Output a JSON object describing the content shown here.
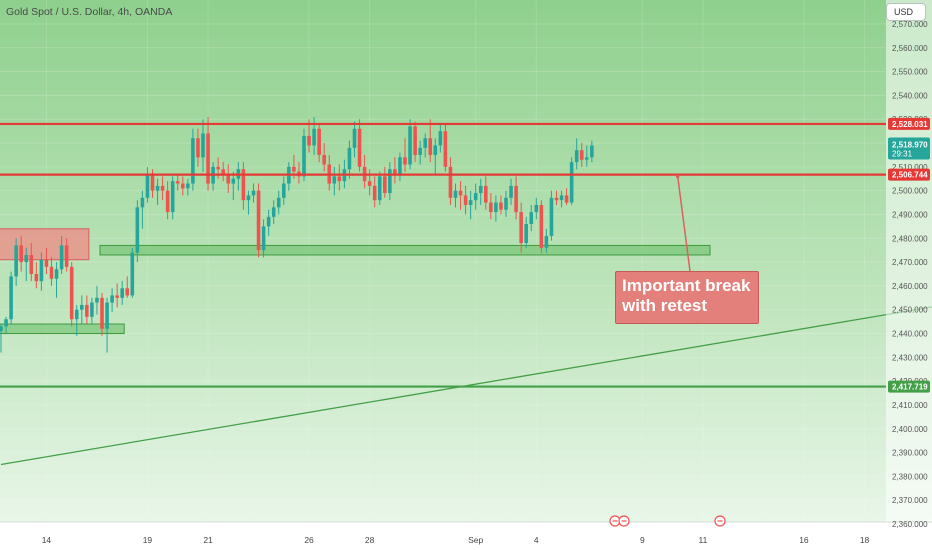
{
  "header": {
    "symbol_title": "Gold Spot / U.S. Dollar, 4h, OANDA",
    "currency": "USD"
  },
  "annotation": {
    "line1": "Important break",
    "line2": "with retest"
  },
  "colors": {
    "bg_top": "#8fd08d",
    "bg_bottom": "#eef8ee",
    "bull": "#26a69a",
    "bear": "#ef5350",
    "resistance_line": "#e53935",
    "support_line": "#43a047",
    "zone_green": "#6cc26c",
    "zone_red": "#f08a86",
    "annotation_bg": "#e3807c"
  },
  "chart_data": {
    "type": "candlestick",
    "timeframe": "4h",
    "y_axis": {
      "min": 2360,
      "max": 2570,
      "ticks": [
        "2,360.000",
        "2,370.000",
        "2,380.000",
        "2,390.000",
        "2,400.000",
        "2,410.000",
        "2,420.000",
        "2,430.000",
        "2,440.000",
        "2,450.000",
        "2,460.000",
        "2,470.000",
        "2,480.000",
        "2,490.000",
        "2,500.000",
        "2,510.000",
        "2,520.000",
        "2,530.000",
        "2,540.000",
        "2,550.000",
        "2,560.000",
        "2,570.000"
      ]
    },
    "x_axis": {
      "labels": [
        {
          "text": "14",
          "index": 9
        },
        {
          "text": "19",
          "index": 29
        },
        {
          "text": "21",
          "index": 41
        },
        {
          "text": "26",
          "index": 61
        },
        {
          "text": "28",
          "index": 73
        },
        {
          "text": "Sep",
          "index": 94
        },
        {
          "text": "4",
          "index": 106
        },
        {
          "text": "9",
          "index": 127
        },
        {
          "text": "11",
          "index": 139
        },
        {
          "text": "16",
          "index": 159
        },
        {
          "text": "18",
          "index": 171
        }
      ]
    },
    "candles_ohlc": [
      [
        2441,
        2444,
        2432,
        2443
      ],
      [
        2443,
        2447,
        2440,
        2446
      ],
      [
        2446,
        2466,
        2444,
        2464
      ],
      [
        2464,
        2480,
        2460,
        2477
      ],
      [
        2477,
        2481,
        2466,
        2470
      ],
      [
        2470,
        2476,
        2462,
        2473
      ],
      [
        2473,
        2478,
        2462,
        2465
      ],
      [
        2465,
        2470,
        2459,
        2462
      ],
      [
        2462,
        2474,
        2458,
        2471
      ],
      [
        2471,
        2476,
        2465,
        2468
      ],
      [
        2468,
        2472,
        2460,
        2463
      ],
      [
        2463,
        2470,
        2455,
        2467
      ],
      [
        2467,
        2481,
        2465,
        2477
      ],
      [
        2477,
        2480,
        2466,
        2468
      ],
      [
        2468,
        2470,
        2443,
        2446
      ],
      [
        2446,
        2452,
        2439,
        2450
      ],
      [
        2450,
        2456,
        2444,
        2452
      ],
      [
        2452,
        2456,
        2444,
        2447
      ],
      [
        2447,
        2455,
        2444,
        2453
      ],
      [
        2453,
        2460,
        2448,
        2455
      ],
      [
        2455,
        2457,
        2439,
        2442
      ],
      [
        2442,
        2455,
        2432,
        2453
      ],
      [
        2453,
        2459,
        2449,
        2456
      ],
      [
        2456,
        2461,
        2451,
        2455
      ],
      [
        2455,
        2462,
        2452,
        2459
      ],
      [
        2459,
        2464,
        2455,
        2456
      ],
      [
        2456,
        2476,
        2455,
        2474
      ],
      [
        2474,
        2496,
        2470,
        2493
      ],
      [
        2493,
        2500,
        2484,
        2497
      ],
      [
        2497,
        2510,
        2495,
        2507
      ],
      [
        2507,
        2509,
        2497,
        2500
      ],
      [
        2500,
        2505,
        2494,
        2502
      ],
      [
        2502,
        2506,
        2496,
        2500
      ],
      [
        2500,
        2504,
        2488,
        2491
      ],
      [
        2491,
        2506,
        2488,
        2504
      ],
      [
        2504,
        2507,
        2500,
        2503
      ],
      [
        2503,
        2506,
        2498,
        2501
      ],
      [
        2501,
        2505,
        2498,
        2503
      ],
      [
        2503,
        2526,
        2500,
        2522
      ],
      [
        2522,
        2526,
        2510,
        2514
      ],
      [
        2514,
        2530,
        2508,
        2524
      ],
      [
        2524,
        2531,
        2500,
        2503
      ],
      [
        2503,
        2512,
        2500,
        2510
      ],
      [
        2510,
        2514,
        2505,
        2509
      ],
      [
        2509,
        2512,
        2504,
        2507
      ],
      [
        2507,
        2511,
        2499,
        2503
      ],
      [
        2503,
        2508,
        2496,
        2505
      ],
      [
        2505,
        2512,
        2500,
        2509
      ],
      [
        2509,
        2512,
        2492,
        2496
      ],
      [
        2496,
        2500,
        2490,
        2498
      ],
      [
        2498,
        2503,
        2495,
        2500
      ],
      [
        2500,
        2503,
        2472,
        2475
      ],
      [
        2475,
        2488,
        2472,
        2485
      ],
      [
        2485,
        2492,
        2481,
        2489
      ],
      [
        2489,
        2496,
        2486,
        2493
      ],
      [
        2493,
        2500,
        2490,
        2497
      ],
      [
        2497,
        2506,
        2494,
        2503
      ],
      [
        2503,
        2512,
        2500,
        2510
      ],
      [
        2510,
        2515,
        2505,
        2508
      ],
      [
        2508,
        2512,
        2503,
        2506
      ],
      [
        2506,
        2526,
        2504,
        2523
      ],
      [
        2523,
        2530,
        2516,
        2519
      ],
      [
        2519,
        2531,
        2515,
        2526
      ],
      [
        2526,
        2528,
        2512,
        2515
      ],
      [
        2515,
        2520,
        2508,
        2511
      ],
      [
        2511,
        2515,
        2500,
        2503
      ],
      [
        2503,
        2510,
        2498,
        2506
      ],
      [
        2506,
        2511,
        2500,
        2504
      ],
      [
        2504,
        2513,
        2501,
        2509
      ],
      [
        2509,
        2521,
        2505,
        2518
      ],
      [
        2518,
        2529,
        2514,
        2526
      ],
      [
        2526,
        2530,
        2508,
        2510
      ],
      [
        2510,
        2515,
        2501,
        2504
      ],
      [
        2504,
        2509,
        2498,
        2502
      ],
      [
        2502,
        2506,
        2493,
        2496
      ],
      [
        2496,
        2508,
        2494,
        2506
      ],
      [
        2506,
        2510,
        2497,
        2499
      ],
      [
        2499,
        2512,
        2496,
        2509
      ],
      [
        2509,
        2514,
        2503,
        2507
      ],
      [
        2507,
        2516,
        2504,
        2514
      ],
      [
        2514,
        2522,
        2508,
        2511
      ],
      [
        2511,
        2530,
        2509,
        2527
      ],
      [
        2527,
        2529,
        2512,
        2515
      ],
      [
        2515,
        2521,
        2511,
        2518
      ],
      [
        2518,
        2524,
        2514,
        2522
      ],
      [
        2522,
        2530,
        2512,
        2515
      ],
      [
        2515,
        2522,
        2507,
        2519
      ],
      [
        2519,
        2528,
        2516,
        2525
      ],
      [
        2525,
        2528,
        2508,
        2510
      ],
      [
        2510,
        2514,
        2494,
        2497
      ],
      [
        2497,
        2503,
        2493,
        2500
      ],
      [
        2500,
        2504,
        2492,
        2498
      ],
      [
        2498,
        2502,
        2490,
        2494
      ],
      [
        2494,
        2500,
        2488,
        2496
      ],
      [
        2496,
        2503,
        2492,
        2499
      ],
      [
        2499,
        2505,
        2494,
        2502
      ],
      [
        2502,
        2506,
        2492,
        2495
      ],
      [
        2495,
        2499,
        2488,
        2491
      ],
      [
        2491,
        2498,
        2487,
        2495
      ],
      [
        2495,
        2498,
        2490,
        2492
      ],
      [
        2492,
        2500,
        2489,
        2497
      ],
      [
        2497,
        2505,
        2494,
        2502
      ],
      [
        2502,
        2506,
        2488,
        2491
      ],
      [
        2491,
        2495,
        2474,
        2478
      ],
      [
        2478,
        2489,
        2476,
        2486
      ],
      [
        2486,
        2494,
        2483,
        2491
      ],
      [
        2491,
        2497,
        2488,
        2494
      ],
      [
        2494,
        2496,
        2474,
        2476
      ],
      [
        2476,
        2484,
        2474,
        2481
      ],
      [
        2481,
        2500,
        2479,
        2497
      ],
      [
        2497,
        2500,
        2494,
        2496
      ],
      [
        2496,
        2500,
        2493,
        2498
      ],
      [
        2498,
        2501,
        2494,
        2495
      ],
      [
        2495,
        2514,
        2494,
        2512
      ],
      [
        2512,
        2522,
        2509,
        2517
      ],
      [
        2517,
        2520,
        2510,
        2513
      ],
      [
        2513,
        2519,
        2510,
        2514
      ],
      [
        2514,
        2521,
        2512,
        2519
      ]
    ],
    "levels": [
      {
        "label": "2,528.031",
        "value": 2528.031,
        "color": "#e53935"
      },
      {
        "label": "2,506.744",
        "value": 2506.744,
        "color": "#e53935"
      },
      {
        "label": "2,417.719",
        "value": 2417.719,
        "color": "#43a047"
      }
    ],
    "current_price": {
      "label": "2,518.970",
      "countdown": "29:31",
      "value": 2518.97,
      "color": "#26a69a"
    },
    "zones": [
      {
        "type": "demand",
        "color": "#6cc26c",
        "start_index": 20,
        "end_index": 140,
        "low": 2473,
        "high": 2477
      },
      {
        "type": "demand",
        "color": "#6cc26c",
        "start_index": 0,
        "end_index": 24,
        "low": 2440,
        "high": 2444
      },
      {
        "type": "supply",
        "color": "#f08a86",
        "start_index": 0,
        "end_index": 17,
        "low": 2471,
        "high": 2484
      }
    ],
    "trendline": {
      "color": "#43a047",
      "from": {
        "index": 0,
        "value": 2385
      },
      "to": {
        "index": 195,
        "value": 2455
      }
    },
    "pointer": {
      "from": {
        "index": 134,
        "value": 2506
      },
      "to": {
        "index": 137,
        "value": 2457
      }
    }
  }
}
